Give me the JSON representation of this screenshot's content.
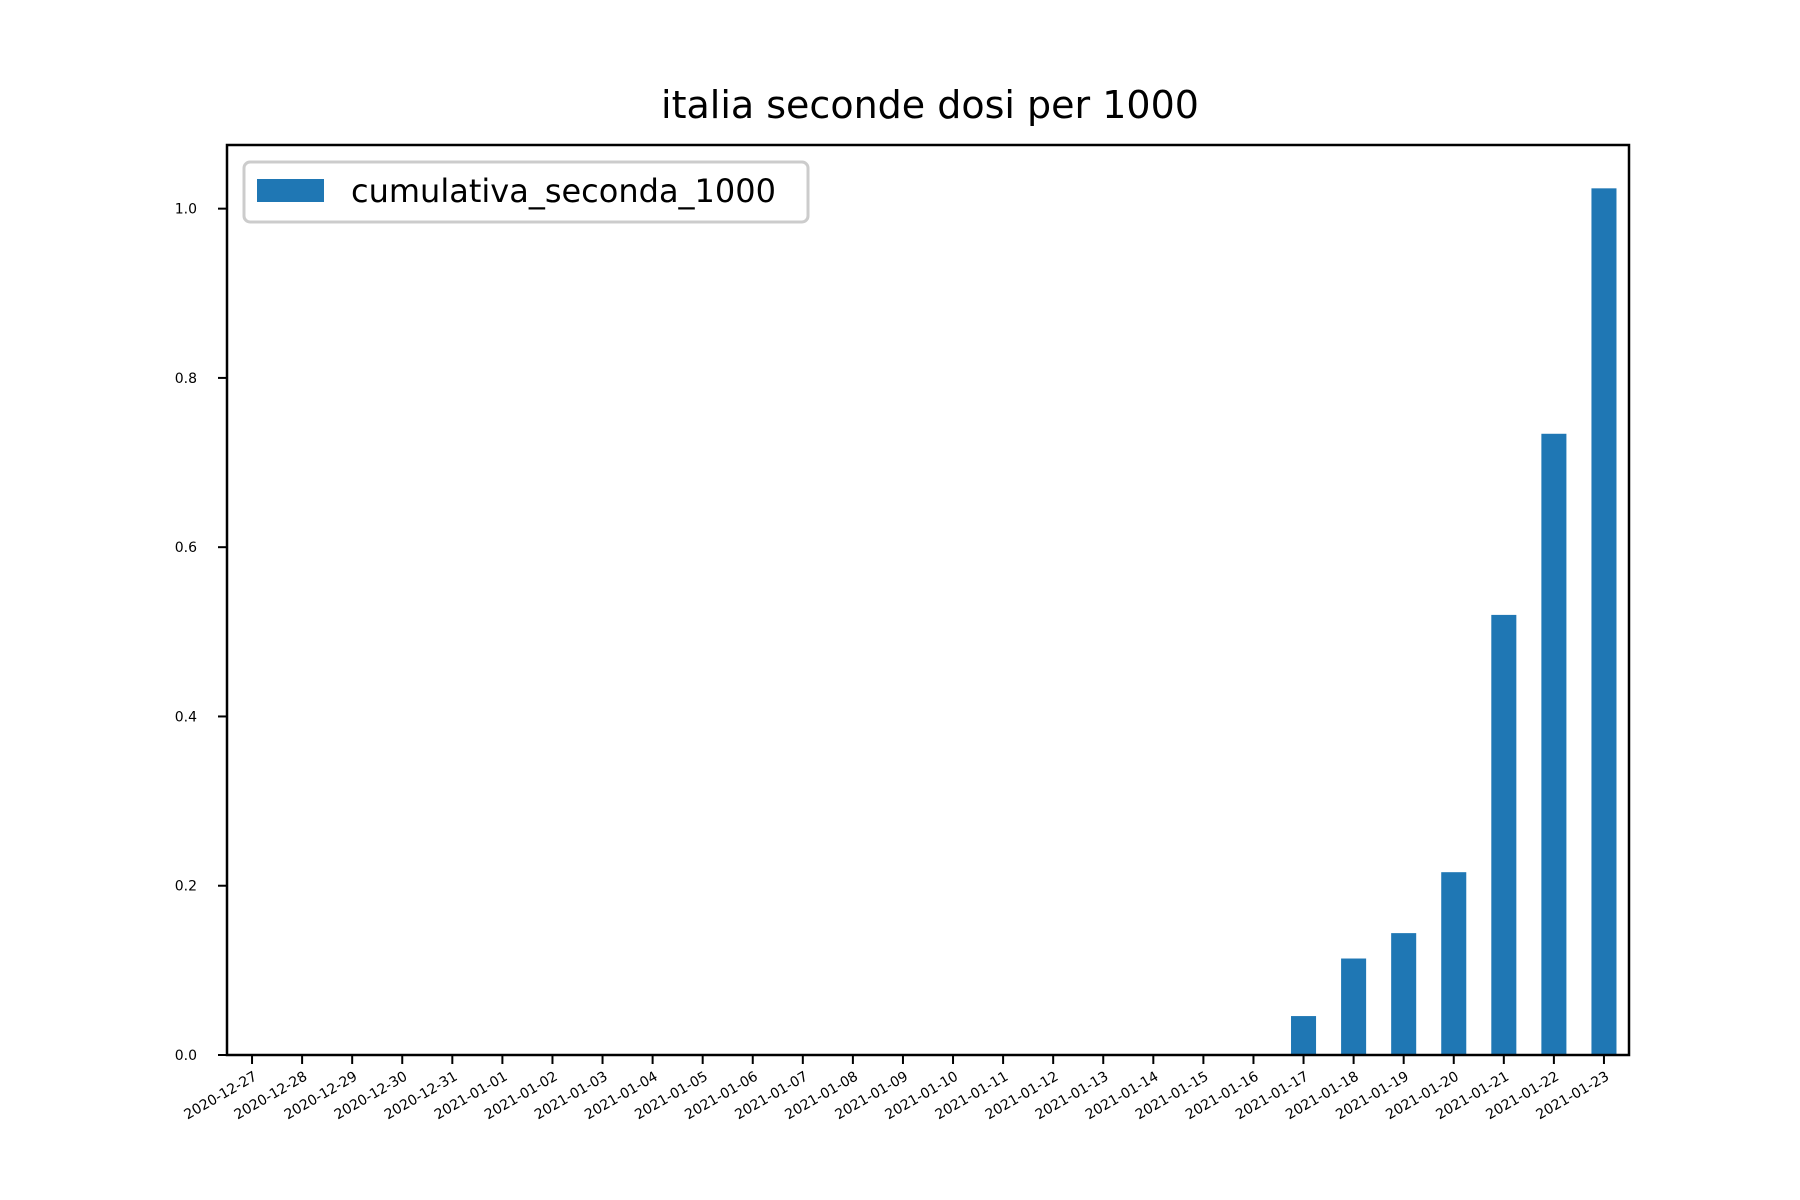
{
  "chart_data": {
    "type": "bar",
    "title": "italia seconde dosi per 1000",
    "xlabel": "",
    "ylabel": "",
    "categories": [
      "2020-12-27",
      "2020-12-28",
      "2020-12-29",
      "2020-12-30",
      "2020-12-31",
      "2021-01-01",
      "2021-01-02",
      "2021-01-03",
      "2021-01-04",
      "2021-01-05",
      "2021-01-06",
      "2021-01-07",
      "2021-01-08",
      "2021-01-09",
      "2021-01-10",
      "2021-01-11",
      "2021-01-12",
      "2021-01-13",
      "2021-01-14",
      "2021-01-15",
      "2021-01-16",
      "2021-01-17",
      "2021-01-18",
      "2021-01-19",
      "2021-01-20",
      "2021-01-21",
      "2021-01-22",
      "2021-01-23"
    ],
    "series": [
      {
        "name": "cumulativa_seconda_1000",
        "color": "#1f77b4",
        "values": [
          0,
          0,
          0,
          0,
          0,
          0,
          0,
          0,
          0,
          0,
          0,
          0,
          0,
          0,
          0,
          0,
          0,
          0,
          0,
          0,
          0,
          0.046,
          0.114,
          0.144,
          0.216,
          0.52,
          0.734,
          1.024
        ]
      }
    ],
    "ylim": [
      0,
      1.0752
    ],
    "yticks": [
      "0.0",
      "0.2",
      "0.4",
      "0.6",
      "0.8",
      "1.0"
    ],
    "grid": false,
    "legend": "top-left"
  }
}
